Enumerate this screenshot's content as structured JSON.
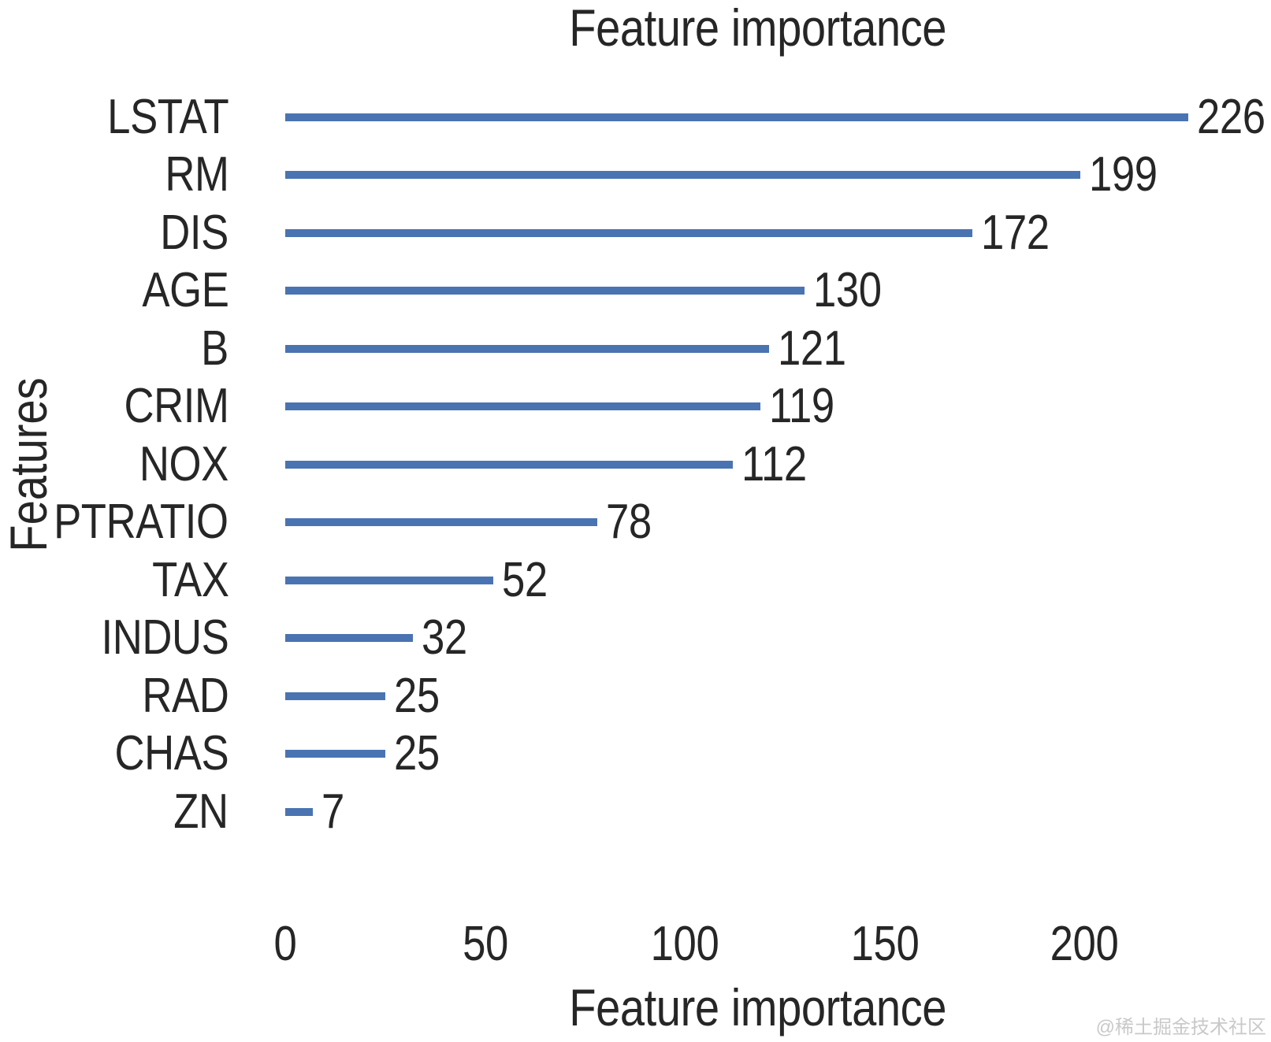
{
  "chart_data": {
    "type": "bar",
    "orientation": "horizontal",
    "title": "Feature importance",
    "xlabel": "Feature importance",
    "ylabel": "Features",
    "categories": [
      "LSTAT",
      "RM",
      "DIS",
      "AGE",
      "B",
      "CRIM",
      "NOX",
      "PTRATIO",
      "TAX",
      "INDUS",
      "RAD",
      "CHAS",
      "ZN"
    ],
    "values": [
      226,
      199,
      172,
      130,
      121,
      119,
      112,
      78,
      52,
      32,
      25,
      25,
      7
    ],
    "xticks": [
      0,
      50,
      100,
      150,
      200
    ],
    "xlim": [
      0,
      235
    ],
    "bar_color": "#4a73b2",
    "text_color": "#262626",
    "grid": false,
    "legend": false,
    "value_labels_shown": true
  },
  "watermark": {
    "text": "@稀土掘金技术社区",
    "color": "#c9c9c9"
  }
}
